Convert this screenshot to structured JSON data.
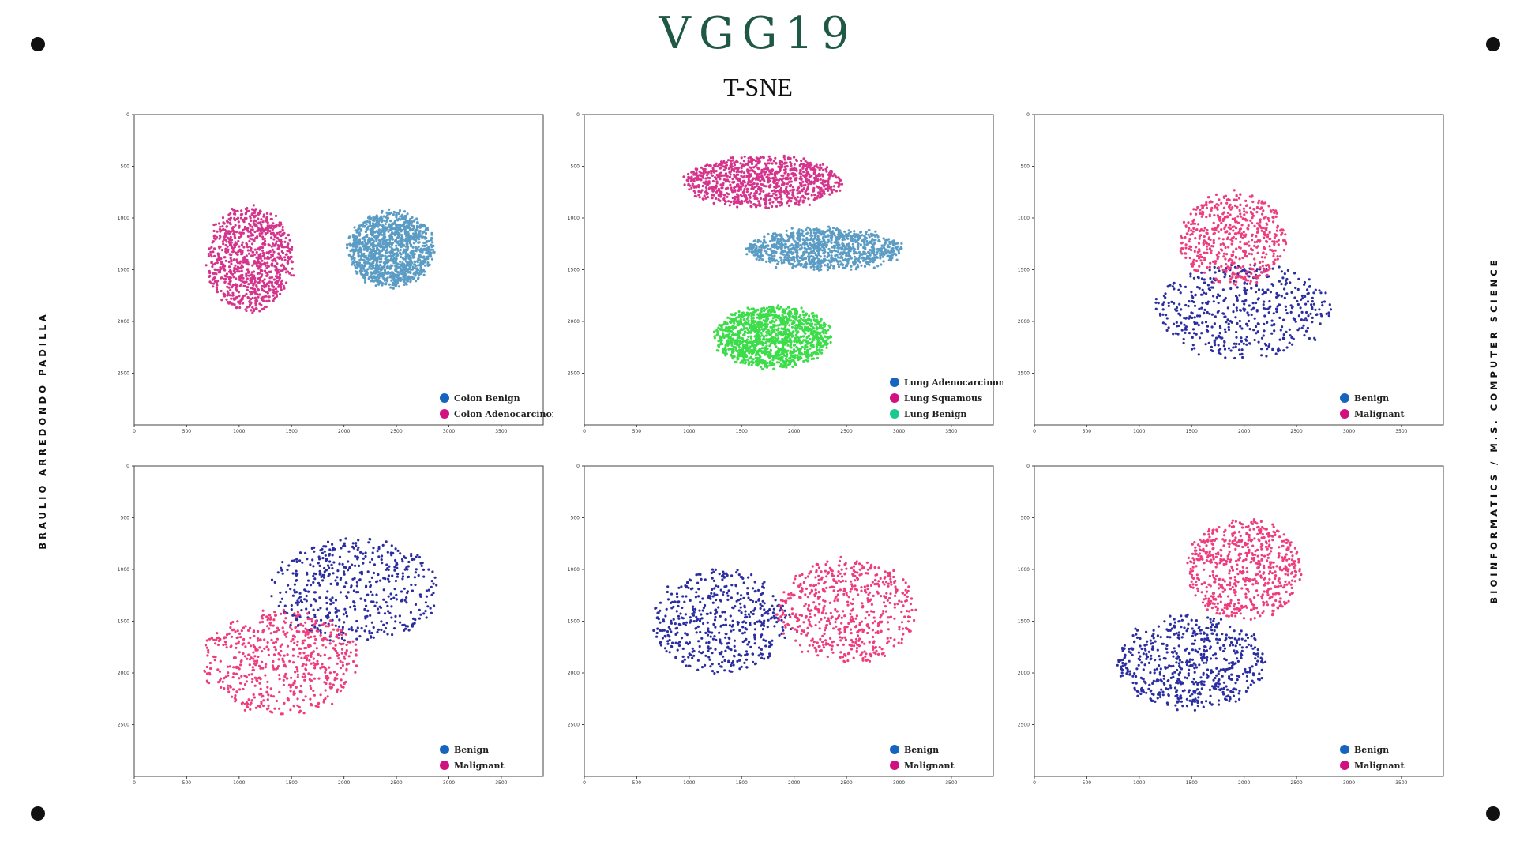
{
  "header": {
    "title": "VGG19",
    "subtitle": "T-SNE"
  },
  "side_labels": {
    "left": "BRAULIO ARREDONDO PADILLA",
    "right": "BIOINFORMATICS / M.S. COMPUTER SCIENCE"
  },
  "colors": {
    "title": "#1f5845",
    "magenta": "#d6348c",
    "steelblue": "#5b9cc4",
    "green": "#3cdc4a",
    "navy": "#2b2ea0",
    "pink": "#ee3c7c",
    "legend_blue": "#1565c0",
    "legend_magenta": "#d0117f",
    "legend_teal": "#1ac98f"
  },
  "chart_data": [
    {
      "type": "scatter",
      "xlim": [
        0,
        3900
      ],
      "ylim": [
        3000,
        0
      ],
      "xticks": [
        0,
        500,
        1000,
        1500,
        2000,
        2500,
        3000,
        3500
      ],
      "yticks": [
        0,
        500,
        1000,
        1500,
        2000,
        2500
      ],
      "legend_position": "bottom-right",
      "series": [
        {
          "name": "Colon Benign",
          "legend_color": "#1565c0",
          "point_color": "#5b9cc4",
          "center": [
            2450,
            1300
          ],
          "spread": [
            800,
            720
          ],
          "count": 1300
        },
        {
          "name": "Colon Adenocarcinoma",
          "legend_color": "#d0117f",
          "point_color": "#d6348c",
          "center": [
            1100,
            1400
          ],
          "spread": [
            820,
            1000
          ],
          "count": 900
        }
      ]
    },
    {
      "type": "scatter",
      "xlim": [
        0,
        3900
      ],
      "ylim": [
        3000,
        0
      ],
      "xticks": [
        0,
        500,
        1000,
        1500,
        2000,
        2500,
        3000,
        3500
      ],
      "yticks": [
        0,
        500,
        1000,
        1500,
        2000,
        2500
      ],
      "legend_position": "bottom-right",
      "series": [
        {
          "name": "Lung Adenocarcinoma",
          "legend_color": "#1565c0",
          "point_color": "#5b9cc4",
          "center": [
            2300,
            1300
          ],
          "spread": [
            1500,
            380
          ],
          "count": 1000
        },
        {
          "name": "Lung Squamous",
          "legend_color": "#d0117f",
          "point_color": "#d6348c",
          "center": [
            1700,
            650
          ],
          "spread": [
            1500,
            480
          ],
          "count": 1000
        },
        {
          "name": "Lung Benign",
          "legend_color": "#1ac98f",
          "point_color": "#3cdc4a",
          "center": [
            1800,
            2150
          ],
          "spread": [
            1100,
            580
          ],
          "count": 1300
        }
      ]
    },
    {
      "type": "scatter",
      "xlim": [
        0,
        3900
      ],
      "ylim": [
        3000,
        0
      ],
      "xticks": [
        0,
        500,
        1000,
        1500,
        2000,
        2500,
        3000,
        3500
      ],
      "yticks": [
        0,
        500,
        1000,
        1500,
        2000,
        2500
      ],
      "legend_position": "bottom-right",
      "series": [
        {
          "name": "Benign",
          "legend_color": "#1565c0",
          "point_color": "#2b2ea0",
          "center": [
            2000,
            1900
          ],
          "spread": [
            1700,
            900
          ],
          "count": 500
        },
        {
          "name": "Malignant",
          "legend_color": "#d0117f",
          "point_color": "#ee3c7c",
          "center": [
            1900,
            1200
          ],
          "spread": [
            1000,
            900
          ],
          "count": 550
        }
      ]
    },
    {
      "type": "scatter",
      "xlim": [
        0,
        3900
      ],
      "ylim": [
        3000,
        0
      ],
      "xticks": [
        0,
        500,
        1000,
        1500,
        2000,
        2500,
        3000,
        3500
      ],
      "yticks": [
        0,
        500,
        1000,
        1500,
        2000,
        2500
      ],
      "legend_position": "bottom-right",
      "series": [
        {
          "name": "Benign",
          "legend_color": "#1565c0",
          "point_color": "#2b2ea0",
          "center": [
            2100,
            1200
          ],
          "spread": [
            1600,
            1000
          ],
          "count": 500
        },
        {
          "name": "Malignant",
          "legend_color": "#d0117f",
          "point_color": "#ee3c7c",
          "center": [
            1400,
            1900
          ],
          "spread": [
            1500,
            1000
          ],
          "count": 600
        }
      ]
    },
    {
      "type": "scatter",
      "xlim": [
        0,
        3900
      ],
      "ylim": [
        3000,
        0
      ],
      "xticks": [
        0,
        500,
        1000,
        1500,
        2000,
        2500,
        3000,
        3500
      ],
      "yticks": [
        0,
        500,
        1000,
        1500,
        2000,
        2500
      ],
      "legend_position": "bottom-right",
      "series": [
        {
          "name": "Benign",
          "legend_color": "#1565c0",
          "point_color": "#2b2ea0",
          "center": [
            1300,
            1500
          ],
          "spread": [
            1300,
            1000
          ],
          "count": 500
        },
        {
          "name": "Malignant",
          "legend_color": "#d0117f",
          "point_color": "#ee3c7c",
          "center": [
            2500,
            1400
          ],
          "spread": [
            1300,
            1000
          ],
          "count": 600
        }
      ]
    },
    {
      "type": "scatter",
      "xlim": [
        0,
        3900
      ],
      "ylim": [
        3000,
        0
      ],
      "xticks": [
        0,
        500,
        1000,
        1500,
        2000,
        2500,
        3000,
        3500
      ],
      "yticks": [
        0,
        500,
        1000,
        1500,
        2000,
        2500
      ],
      "legend_position": "bottom-right",
      "series": [
        {
          "name": "Benign",
          "legend_color": "#1565c0",
          "point_color": "#2b2ea0",
          "center": [
            1500,
            1900
          ],
          "spread": [
            1400,
            900
          ],
          "count": 600
        },
        {
          "name": "Malignant",
          "legend_color": "#d0117f",
          "point_color": "#ee3c7c",
          "center": [
            2000,
            1000
          ],
          "spread": [
            1100,
            950
          ],
          "count": 650
        }
      ]
    }
  ]
}
